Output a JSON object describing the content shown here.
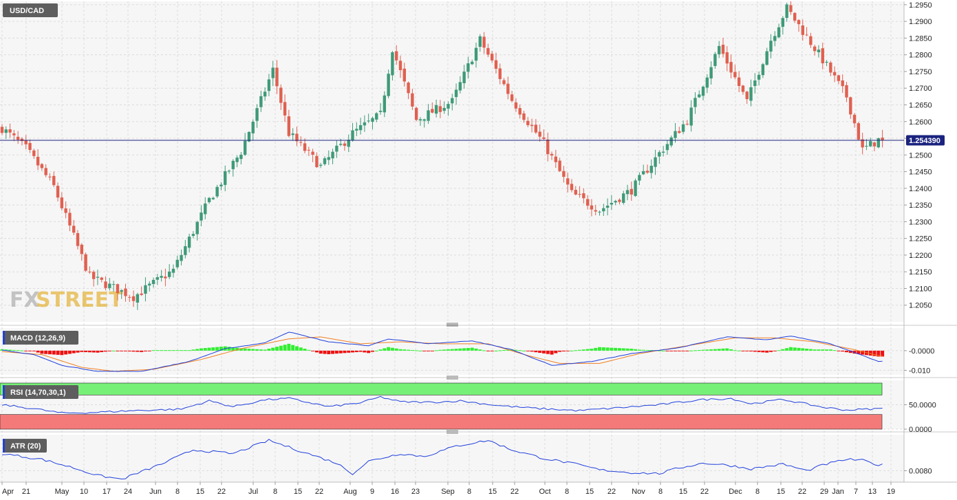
{
  "symbol": "USD/CAD",
  "watermark": {
    "fx": "FX",
    "street": "STREET"
  },
  "last_price": {
    "label": "1.254390",
    "value": 1.25439
  },
  "colors": {
    "bull": "#3f9a78",
    "bear": "#e06050",
    "price_line": "#1a237e",
    "macd_line": "#1f3fdc",
    "signal_line": "#f08020",
    "hist_pos": "#33ee33",
    "hist_neg": "#ee1111",
    "rsi_line": "#1f3fdc",
    "rsi_over": "#77f077",
    "rsi_under": "#f47a7a",
    "atr_line": "#1f3fdc",
    "tag": "#1a237e"
  },
  "x_labels": [
    "Apr",
    "21",
    "May",
    "10",
    "17",
    "24",
    "Jun",
    "8",
    "15",
    "22",
    "Jul",
    "8",
    "15",
    "22",
    "Aug",
    "9",
    "16",
    "23",
    "Sep",
    "8",
    "15",
    "22",
    "Oct",
    "8",
    "15",
    "22",
    "Nov",
    "8",
    "15",
    "22",
    "Dec",
    "8",
    "15",
    "22",
    "29",
    "Jan",
    "7",
    "13",
    "19"
  ],
  "chart_data": [
    {
      "type": "candlestick",
      "title": "USD/CAD",
      "y_ticks": [
        "1.2950",
        "1.2900",
        "1.2850",
        "1.2800",
        "1.2750",
        "1.2700",
        "1.2650",
        "1.2600",
        "1.2550",
        "1.2500",
        "1.2450",
        "1.2400",
        "1.2350",
        "1.2300",
        "1.2250",
        "1.2200",
        "1.2150",
        "1.2100",
        "1.2050"
      ],
      "ylim": [
        1.2,
        1.296
      ],
      "control_points": [
        [
          0,
          1.258
        ],
        [
          6,
          1.252
        ],
        [
          13,
          1.2405
        ],
        [
          22,
          1.2135
        ],
        [
          33,
          1.2075
        ],
        [
          43,
          1.2155
        ],
        [
          52,
          1.2365
        ],
        [
          60,
          1.251
        ],
        [
          68,
          1.2755
        ],
        [
          72,
          1.2565
        ],
        [
          80,
          1.2465
        ],
        [
          88,
          1.2565
        ],
        [
          95,
          1.262
        ],
        [
          98,
          1.282
        ],
        [
          104,
          1.2605
        ],
        [
          113,
          1.266
        ],
        [
          120,
          1.2845
        ],
        [
          128,
          1.2665
        ],
        [
          136,
          1.2535
        ],
        [
          143,
          1.2385
        ],
        [
          150,
          1.2335
        ],
        [
          158,
          1.2395
        ],
        [
          165,
          1.2505
        ],
        [
          172,
          1.2605
        ],
        [
          180,
          1.2825
        ],
        [
          187,
          1.266
        ],
        [
          193,
          1.2845
        ],
        [
          197,
          1.294
        ],
        [
          206,
          1.2785
        ],
        [
          212,
          1.2675
        ],
        [
          216,
          1.2515
        ],
        [
          220,
          1.2545
        ]
      ],
      "last": 1.25439
    },
    {
      "type": "line",
      "title": "MACD (12,26,9)",
      "y_ticks": [
        "-0.0000",
        "-0.010"
      ],
      "ylim": [
        -0.0123,
        0.0115
      ],
      "macd_points": [
        [
          0,
          0.0002
        ],
        [
          8,
          -0.002
        ],
        [
          15,
          -0.0075
        ],
        [
          24,
          -0.0105
        ],
        [
          35,
          -0.0105
        ],
        [
          47,
          -0.0055
        ],
        [
          56,
          0.001
        ],
        [
          66,
          0.004
        ],
        [
          72,
          0.0095
        ],
        [
          82,
          0.0045
        ],
        [
          92,
          0.0025
        ],
        [
          97,
          0.006
        ],
        [
          107,
          0.0035
        ],
        [
          118,
          0.005
        ],
        [
          128,
          0.0005
        ],
        [
          138,
          -0.0075
        ],
        [
          148,
          -0.0055
        ],
        [
          158,
          -0.0015
        ],
        [
          170,
          0.0015
        ],
        [
          182,
          0.007
        ],
        [
          192,
          0.0055
        ],
        [
          198,
          0.0075
        ],
        [
          208,
          0.0035
        ],
        [
          216,
          -0.0025
        ],
        [
          220,
          -0.0055
        ]
      ],
      "signal_points": [
        [
          0,
          -0.0005
        ],
        [
          10,
          -0.002
        ],
        [
          20,
          -0.0085
        ],
        [
          28,
          -0.0105
        ],
        [
          38,
          -0.0095
        ],
        [
          50,
          -0.0045
        ],
        [
          60,
          0.001
        ],
        [
          72,
          0.006
        ],
        [
          80,
          0.007
        ],
        [
          90,
          0.0035
        ],
        [
          100,
          0.0045
        ],
        [
          110,
          0.0035
        ],
        [
          122,
          0.0035
        ],
        [
          132,
          -0.0025
        ],
        [
          140,
          -0.0065
        ],
        [
          150,
          -0.0065
        ],
        [
          160,
          -0.0015
        ],
        [
          172,
          0.0025
        ],
        [
          184,
          0.0065
        ],
        [
          194,
          0.0065
        ],
        [
          204,
          0.0045
        ],
        [
          214,
          0.0005
        ],
        [
          220,
          -0.0025
        ]
      ]
    },
    {
      "type": "line",
      "title": "RSI (14,70,30,1)",
      "y_ticks": [
        "50.0000",
        "0.0000"
      ],
      "ylim": [
        0,
        100
      ],
      "overbought": 70,
      "oversold": 30,
      "control_points": [
        [
          0,
          50
        ],
        [
          8,
          42
        ],
        [
          15,
          33
        ],
        [
          22,
          34
        ],
        [
          33,
          38
        ],
        [
          45,
          41
        ],
        [
          52,
          58
        ],
        [
          58,
          46
        ],
        [
          66,
          60
        ],
        [
          72,
          63
        ],
        [
          82,
          46
        ],
        [
          90,
          54
        ],
        [
          95,
          66
        ],
        [
          100,
          56
        ],
        [
          108,
          55
        ],
        [
          115,
          58
        ],
        [
          125,
          48
        ],
        [
          135,
          42
        ],
        [
          145,
          38
        ],
        [
          155,
          44
        ],
        [
          165,
          50
        ],
        [
          175,
          60
        ],
        [
          183,
          63
        ],
        [
          188,
          52
        ],
        [
          196,
          61
        ],
        [
          206,
          45
        ],
        [
          212,
          39
        ],
        [
          220,
          42
        ]
      ]
    },
    {
      "type": "line",
      "title": "ATR (20)",
      "y_ticks": [
        "0.0080"
      ],
      "ylim": [
        0.0068,
        0.0118
      ],
      "control_points": [
        [
          0,
          0.0098
        ],
        [
          10,
          0.0092
        ],
        [
          18,
          0.0083
        ],
        [
          24,
          0.0075
        ],
        [
          30,
          0.0071
        ],
        [
          40,
          0.0087
        ],
        [
          48,
          0.0102
        ],
        [
          58,
          0.0098
        ],
        [
          67,
          0.0112
        ],
        [
          74,
          0.0102
        ],
        [
          84,
          0.0088
        ],
        [
          88,
          0.0077
        ],
        [
          92,
          0.009
        ],
        [
          100,
          0.0098
        ],
        [
          106,
          0.0095
        ],
        [
          114,
          0.0106
        ],
        [
          122,
          0.0112
        ],
        [
          128,
          0.0102
        ],
        [
          136,
          0.0093
        ],
        [
          144,
          0.0087
        ],
        [
          150,
          0.0081
        ],
        [
          158,
          0.0078
        ],
        [
          165,
          0.0077
        ],
        [
          170,
          0.0083
        ],
        [
          176,
          0.0088
        ],
        [
          182,
          0.0086
        ],
        [
          188,
          0.0082
        ],
        [
          196,
          0.0087
        ],
        [
          202,
          0.008
        ],
        [
          206,
          0.0086
        ],
        [
          212,
          0.0092
        ],
        [
          216,
          0.0091
        ],
        [
          220,
          0.0086
        ]
      ]
    }
  ]
}
